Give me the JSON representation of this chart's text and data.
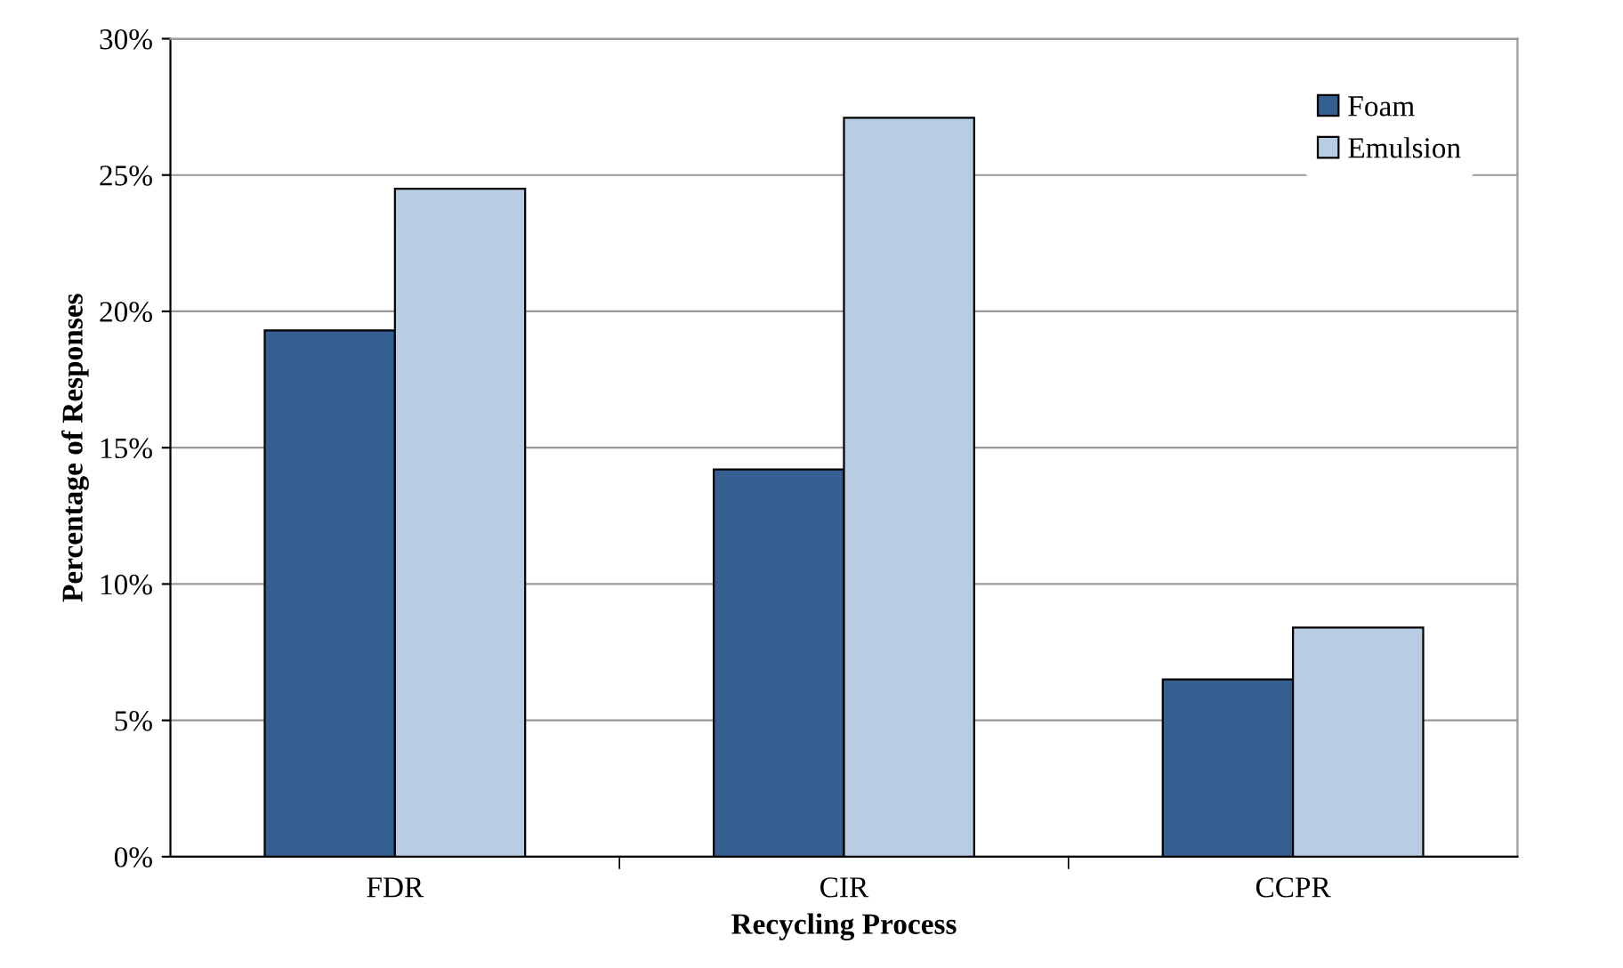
{
  "chart_data": {
    "type": "bar",
    "xlabel": "Recycling Process",
    "ylabel": "Percentage of Responses",
    "categories": [
      "FDR",
      "CIR",
      "CCPR"
    ],
    "series": [
      {
        "name": "Foam",
        "color": "#355e91",
        "values": [
          19.3,
          14.2,
          6.5
        ]
      },
      {
        "name": "Emulsion",
        "color": "#b8cce4",
        "values": [
          24.5,
          27.1,
          8.4
        ]
      }
    ],
    "ylim": [
      0,
      30
    ],
    "yticks": [
      {
        "value": 0,
        "label": "0%"
      },
      {
        "value": 5,
        "label": "5%"
      },
      {
        "value": 10,
        "label": "10%"
      },
      {
        "value": 15,
        "label": "15%"
      },
      {
        "value": 20,
        "label": "20%"
      },
      {
        "value": 25,
        "label": "25%"
      },
      {
        "value": 30,
        "label": "30%"
      }
    ],
    "grid": "y",
    "legend": "top right"
  }
}
